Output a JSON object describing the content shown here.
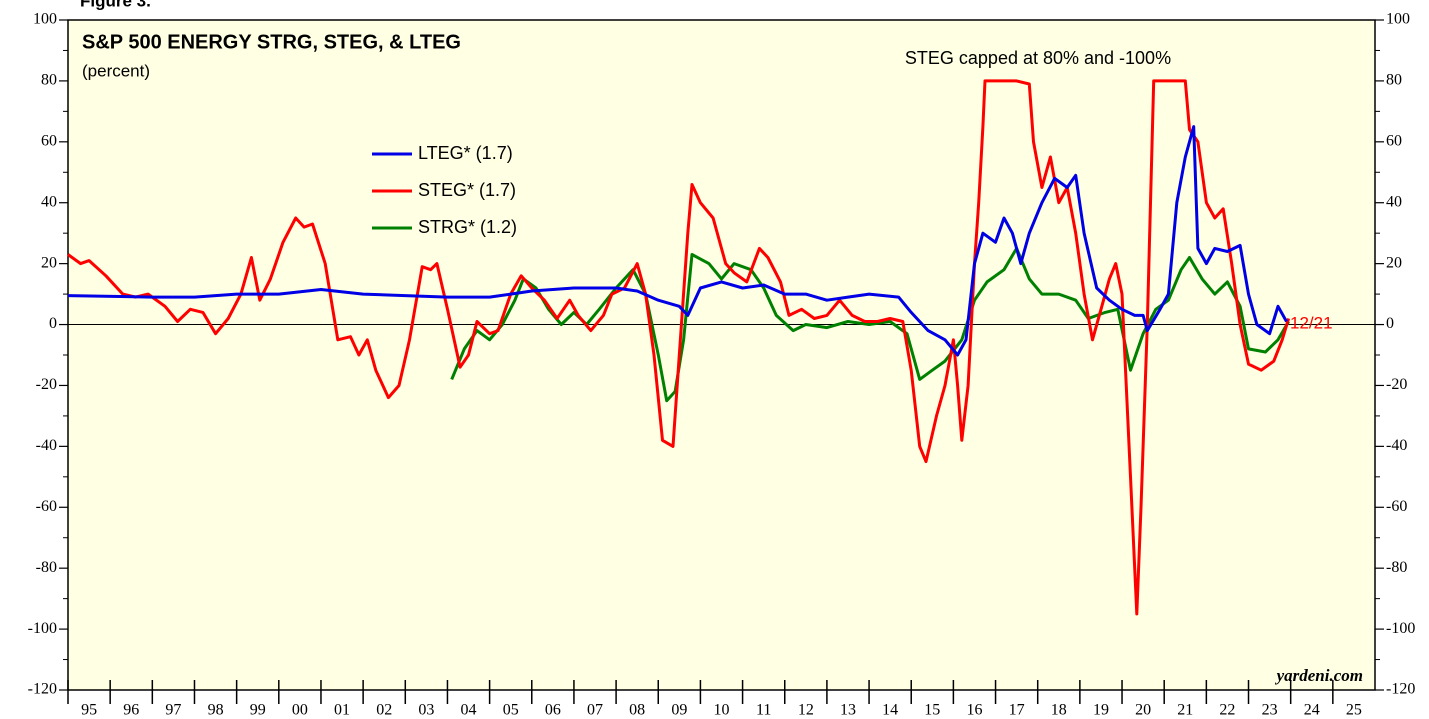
{
  "chart_data": {
    "type": "line",
    "figure_label": "Figure 3.",
    "title": "S&P 500 ENERGY STRG, STEG, & LTEG",
    "subtitle": "(percent)",
    "annotation": "STEG capped at 80% and -100%",
    "end_label": "12/21",
    "source": "yardeni.com",
    "xlim": [
      1995,
      2026
    ],
    "xticks": [
      {
        "value": 1995,
        "label": "95"
      },
      {
        "value": 1996,
        "label": "96"
      },
      {
        "value": 1997,
        "label": "97"
      },
      {
        "value": 1998,
        "label": "98"
      },
      {
        "value": 1999,
        "label": "99"
      },
      {
        "value": 2000,
        "label": "00"
      },
      {
        "value": 2001,
        "label": "01"
      },
      {
        "value": 2002,
        "label": "02"
      },
      {
        "value": 2003,
        "label": "03"
      },
      {
        "value": 2004,
        "label": "04"
      },
      {
        "value": 2005,
        "label": "05"
      },
      {
        "value": 2006,
        "label": "06"
      },
      {
        "value": 2007,
        "label": "07"
      },
      {
        "value": 2008,
        "label": "08"
      },
      {
        "value": 2009,
        "label": "09"
      },
      {
        "value": 2010,
        "label": "10"
      },
      {
        "value": 2011,
        "label": "11"
      },
      {
        "value": 2012,
        "label": "12"
      },
      {
        "value": 2013,
        "label": "13"
      },
      {
        "value": 2014,
        "label": "14"
      },
      {
        "value": 2015,
        "label": "15"
      },
      {
        "value": 2016,
        "label": "16"
      },
      {
        "value": 2017,
        "label": "17"
      },
      {
        "value": 2018,
        "label": "18"
      },
      {
        "value": 2019,
        "label": "19"
      },
      {
        "value": 2020,
        "label": "20"
      },
      {
        "value": 2021,
        "label": "21"
      },
      {
        "value": 2022,
        "label": "22"
      },
      {
        "value": 2023,
        "label": "23"
      },
      {
        "value": 2024,
        "label": "24"
      },
      {
        "value": 2025,
        "label": "25"
      }
    ],
    "ylim": [
      -120,
      100
    ],
    "yticks": [
      -120,
      -100,
      -80,
      -60,
      -40,
      -20,
      0,
      20,
      40,
      60,
      80,
      100
    ],
    "series": [
      {
        "name": "LTEG* (1.7)",
        "color": "#0000e6",
        "x": [
          1995,
          1997,
          1998,
          1999,
          2000,
          2001,
          2002,
          2003,
          2004,
          2005,
          2005.5,
          2006,
          2007,
          2008,
          2008.5,
          2009,
          2009.5,
          2009.7,
          2010,
          2010.5,
          2011,
          2011.5,
          2012,
          2012.5,
          2013,
          2013.5,
          2014,
          2014.7,
          2015,
          2015.4,
          2015.8,
          2016.1,
          2016.3,
          2016.5,
          2016.7,
          2017,
          2017.2,
          2017.4,
          2017.6,
          2017.8,
          2018.1,
          2018.4,
          2018.7,
          2018.9,
          2019.1,
          2019.4,
          2019.7,
          2020,
          2020.3,
          2020.5,
          2020.6,
          2020.9,
          2021.1,
          2021.3,
          2021.5,
          2021.7,
          2021.8,
          2022,
          2022.2,
          2022.5,
          2022.8,
          2023,
          2023.2,
          2023.5,
          2023.7,
          2023.9
        ],
        "values": [
          9.5,
          9,
          9,
          10,
          10,
          11.5,
          10,
          9.5,
          9,
          9,
          10,
          11,
          12,
          12,
          11,
          8,
          6,
          3,
          12,
          14,
          12,
          13,
          10,
          10,
          8,
          9,
          10,
          9,
          4,
          -2,
          -5,
          -10,
          -5,
          20,
          30,
          27,
          35,
          30,
          20,
          30,
          40,
          48,
          45,
          49,
          30,
          12,
          8,
          5,
          3,
          3,
          -2,
          5,
          10,
          40,
          55,
          65,
          25,
          20,
          25,
          24,
          26,
          10,
          0,
          -3,
          6,
          1
        ]
      },
      {
        "name": "STEG* (1.7)",
        "color": "#ff0000",
        "x": [
          1995,
          1995.3,
          1995.5,
          1995.9,
          1996.3,
          1996.6,
          1996.9,
          1997.3,
          1997.6,
          1997.9,
          1998.2,
          1998.5,
          1998.8,
          1999.1,
          1999.35,
          1999.55,
          1999.8,
          2000.1,
          2000.4,
          2000.6,
          2000.8,
          2001.1,
          2001.4,
          2001.7,
          2001.9,
          2002.1,
          2002.3,
          2002.6,
          2002.85,
          2003.1,
          2003.4,
          2003.6,
          2003.75,
          2004,
          2004.3,
          2004.5,
          2004.7,
          2005,
          2005.2,
          2005.5,
          2005.75,
          2006,
          2006.3,
          2006.6,
          2006.9,
          2007.1,
          2007.4,
          2007.7,
          2007.9,
          2008.2,
          2008.5,
          2008.7,
          2008.9,
          2009.1,
          2009.35,
          2009.5,
          2009.7,
          2009.8,
          2010,
          2010.3,
          2010.6,
          2010.8,
          2011.1,
          2011.4,
          2011.6,
          2011.9,
          2012.1,
          2012.4,
          2012.7,
          2013,
          2013.3,
          2013.6,
          2013.9,
          2014.2,
          2014.5,
          2014.8,
          2015,
          2015.2,
          2015.35,
          2015.6,
          2015.8,
          2016,
          2016.1,
          2016.2,
          2016.35,
          2016.5,
          2016.6,
          2016.7,
          2016.75,
          2017,
          2017.5,
          2017.8,
          2017.9,
          2018.1,
          2018.3,
          2018.5,
          2018.7,
          2018.9,
          2019.1,
          2019.3,
          2019.5,
          2019.7,
          2019.85,
          2020,
          2020.2,
          2020.35,
          2020.45,
          2020.6,
          2020.75,
          2021,
          2021.5,
          2021.6,
          2021.8,
          2022,
          2022.2,
          2022.4,
          2022.6,
          2022.8,
          2023,
          2023.3,
          2023.6,
          2023.8,
          2023.95
        ],
        "values": [
          23,
          20,
          21,
          16,
          10,
          9,
          10,
          6,
          1,
          5,
          4,
          -3,
          2,
          10,
          22,
          8,
          15,
          27,
          35,
          32,
          33,
          20,
          -5,
          -4,
          -10,
          -5,
          -15,
          -24,
          -20,
          -5,
          19,
          18,
          20,
          5,
          -14,
          -10,
          1,
          -3,
          -2,
          10,
          16,
          12,
          8,
          2,
          8,
          3,
          -2,
          3,
          10,
          12,
          20,
          10,
          -10,
          -38,
          -40,
          -10,
          30,
          46,
          40,
          35,
          20,
          17,
          14,
          25,
          22,
          14,
          3,
          5,
          2,
          3,
          8,
          3,
          1,
          1,
          2,
          1,
          -15,
          -40,
          -45,
          -30,
          -20,
          -5,
          -20,
          -38,
          -20,
          20,
          40,
          65,
          80,
          80,
          80,
          79,
          60,
          45,
          55,
          40,
          45,
          30,
          10,
          -5,
          5,
          15,
          20,
          10,
          -50,
          -95,
          -60,
          0,
          80,
          80,
          80,
          64,
          60,
          40,
          35,
          38,
          20,
          0,
          -13,
          -15,
          -12,
          -5,
          2
        ]
      },
      {
        "name": "STRG* (1.2)",
        "color": "#008000",
        "x": [
          2004.1,
          2004.4,
          2004.7,
          2005,
          2005.3,
          2005.6,
          2005.8,
          2006.1,
          2006.4,
          2006.7,
          2007,
          2007.3,
          2007.6,
          2008,
          2008.4,
          2008.7,
          2009,
          2009.2,
          2009.4,
          2009.6,
          2009.8,
          2010.2,
          2010.5,
          2010.8,
          2011.2,
          2011.5,
          2011.8,
          2012.2,
          2012.5,
          2013,
          2013.5,
          2014,
          2014.5,
          2014.9,
          2015.2,
          2015.5,
          2015.8,
          2016.2,
          2016.5,
          2016.8,
          2017.2,
          2017.5,
          2017.8,
          2018.1,
          2018.5,
          2018.9,
          2019.2,
          2019.6,
          2019.9,
          2020.2,
          2020.5,
          2020.8,
          2021.1,
          2021.4,
          2021.6,
          2021.9,
          2022.2,
          2022.5,
          2022.8,
          2023,
          2023.4,
          2023.7,
          2023.95
        ],
        "values": [
          -18,
          -8,
          -2,
          -5,
          0,
          8,
          15,
          12,
          5,
          0,
          4,
          0,
          5,
          12,
          18,
          10,
          -10,
          -25,
          -22,
          -5,
          23,
          20,
          15,
          20,
          18,
          12,
          3,
          -2,
          0,
          -1,
          1,
          0,
          1,
          -3,
          -18,
          -15,
          -12,
          -5,
          8,
          14,
          18,
          25,
          15,
          10,
          10,
          8,
          2,
          4,
          5,
          -15,
          -3,
          5,
          8,
          18,
          22,
          15,
          10,
          14,
          6,
          -8,
          -9,
          -5,
          1
        ]
      }
    ]
  }
}
